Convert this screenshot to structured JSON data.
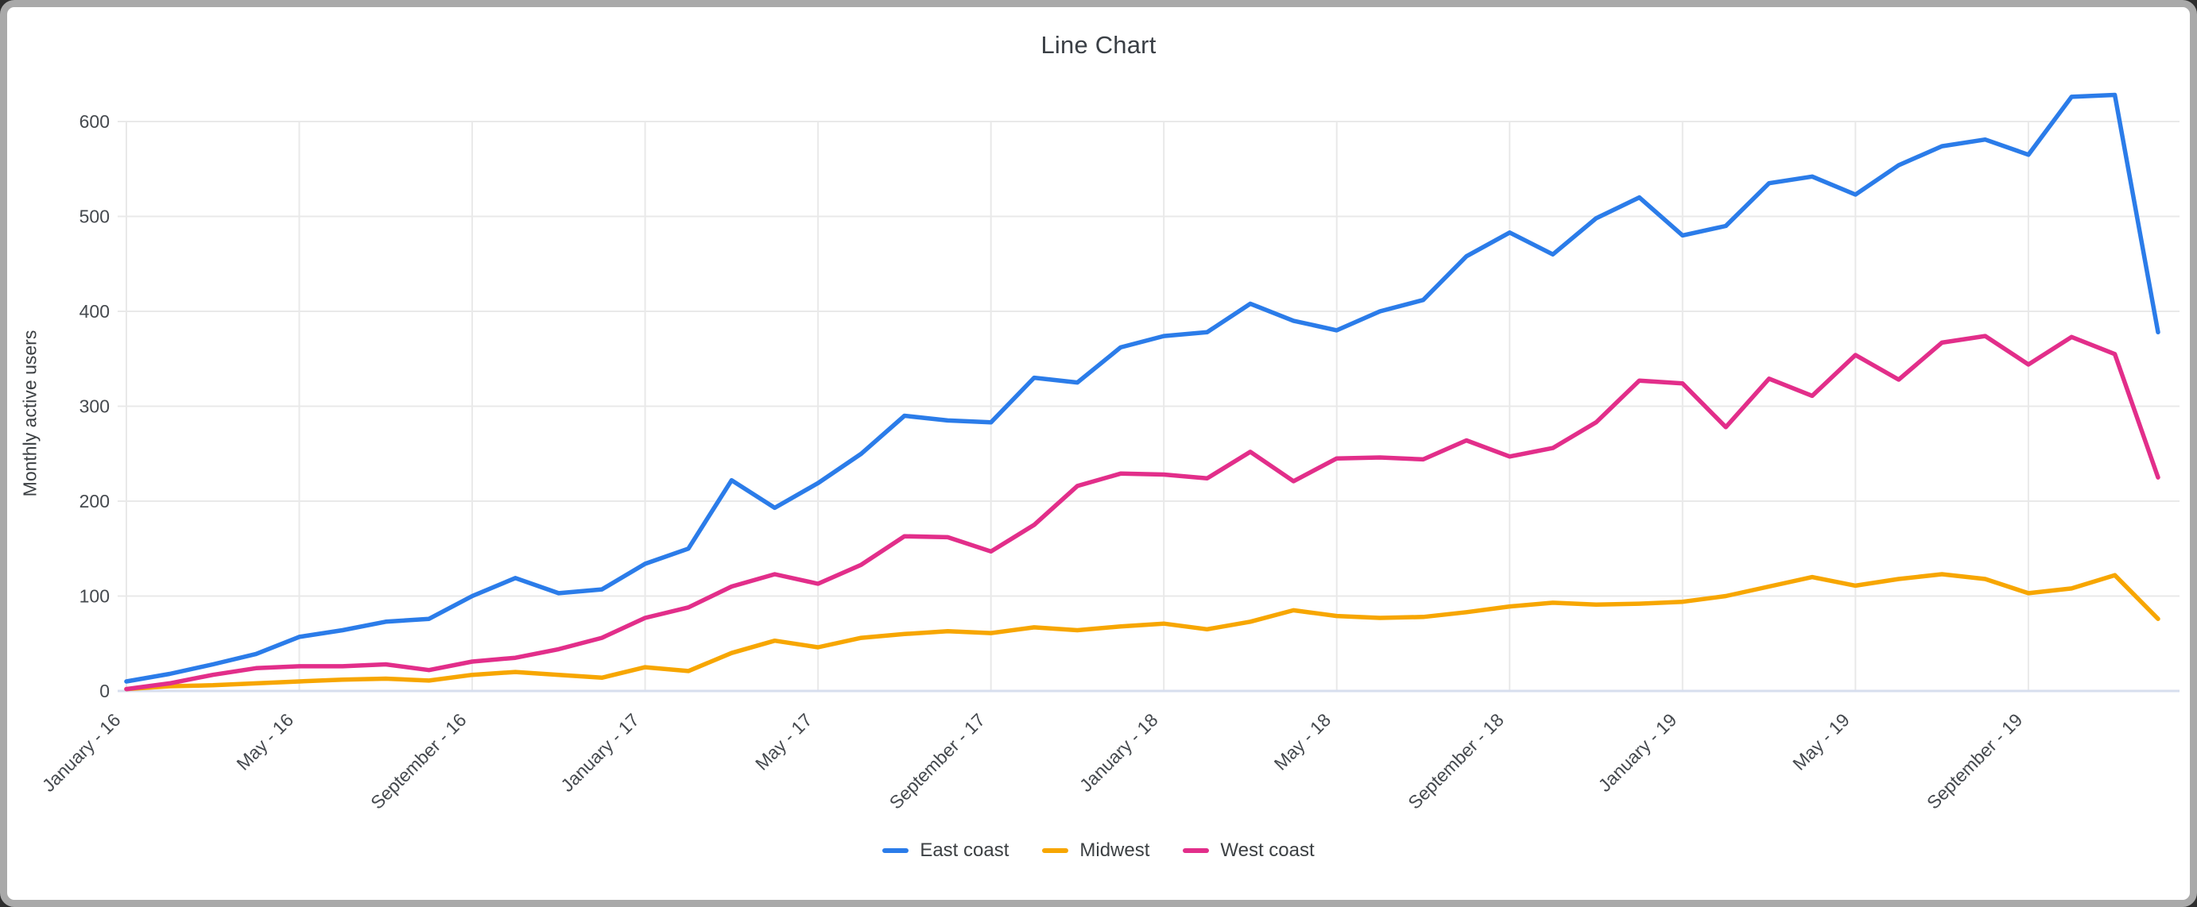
{
  "window": {
    "title": "Line Chart"
  },
  "chart_data": {
    "type": "line",
    "title": "Line Chart",
    "xlabel": "",
    "ylabel": "Monthly active users",
    "ylim": [
      0,
      600
    ],
    "y_ticks": [
      0,
      100,
      200,
      300,
      400,
      500,
      600
    ],
    "grid": true,
    "legend_position": "bottom",
    "x_tick_every": 4,
    "x_tick_labels": [
      "January - 16",
      "May - 16",
      "September - 16",
      "January - 17",
      "May - 17",
      "September - 17",
      "January - 18",
      "May - 18",
      "September - 18",
      "January - 19",
      "May - 19",
      "September - 19"
    ],
    "categories": [
      "January - 16",
      "February - 16",
      "March - 16",
      "April - 16",
      "May - 16",
      "June - 16",
      "July - 16",
      "August - 16",
      "September - 16",
      "October - 16",
      "November - 16",
      "December - 16",
      "January - 17",
      "February - 17",
      "March - 17",
      "April - 17",
      "May - 17",
      "June - 17",
      "July - 17",
      "August - 17",
      "September - 17",
      "October - 17",
      "November - 17",
      "December - 17",
      "January - 18",
      "February - 18",
      "March - 18",
      "April - 18",
      "May - 18",
      "June - 18",
      "July - 18",
      "August - 18",
      "September - 18",
      "October - 18",
      "November - 18",
      "December - 18",
      "January - 19",
      "February - 19",
      "March - 19",
      "April - 19",
      "May - 19",
      "June - 19",
      "July - 19",
      "August - 19",
      "September - 19",
      "October - 19",
      "November - 19",
      "December - 19"
    ],
    "series": [
      {
        "name": "East coast",
        "color": "#2b7ce9",
        "values": [
          10,
          18,
          28,
          39,
          57,
          64,
          73,
          76,
          100,
          119,
          103,
          107,
          134,
          150,
          222,
          193,
          219,
          250,
          290,
          285,
          283,
          330,
          325,
          362,
          374,
          378,
          408,
          390,
          380,
          400,
          412,
          458,
          483,
          460,
          498,
          520,
          480,
          490,
          535,
          542,
          523,
          554,
          574,
          581,
          565,
          626,
          628,
          378
        ]
      },
      {
        "name": "Midwest",
        "color": "#f7a600",
        "values": [
          2,
          5,
          6,
          8,
          10,
          12,
          13,
          11,
          17,
          20,
          17,
          14,
          25,
          21,
          40,
          53,
          46,
          56,
          60,
          63,
          61,
          67,
          64,
          68,
          71,
          65,
          73,
          85,
          79,
          77,
          78,
          83,
          89,
          93,
          91,
          92,
          94,
          100,
          110,
          120,
          111,
          118,
          123,
          118,
          103,
          108,
          122,
          76
        ]
      },
      {
        "name": "West coast",
        "color": "#e22e8a",
        "values": [
          2,
          8,
          17,
          24,
          26,
          26,
          28,
          22,
          31,
          35,
          44,
          56,
          77,
          88,
          110,
          123,
          113,
          133,
          163,
          162,
          147,
          175,
          216,
          229,
          228,
          224,
          252,
          221,
          245,
          246,
          244,
          264,
          247,
          256,
          283,
          327,
          324,
          278,
          329,
          311,
          354,
          328,
          367,
          374,
          344,
          373,
          355,
          225
        ]
      }
    ],
    "colors": {
      "grid": "#e9e9e9",
      "axis_line": "#d7deee",
      "tick_label": "#45494e",
      "title": "#3a3f45"
    }
  }
}
